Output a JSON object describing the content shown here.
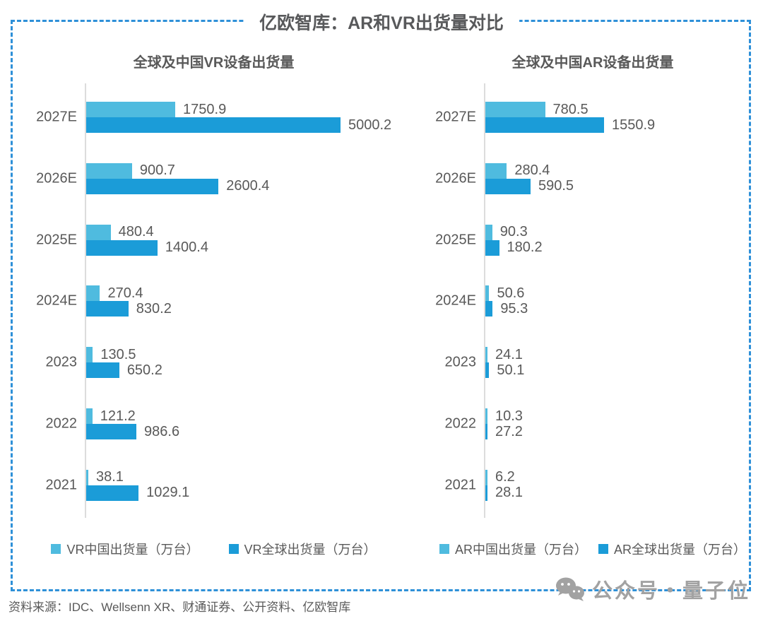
{
  "page": {
    "title": "亿欧智库：AR和VR出货量对比",
    "source_note": "资料来源：IDC、Wellsenn XR、财通证券、公开资料、亿欧智库",
    "watermark_text": "公众号・量子位"
  },
  "colors": {
    "china_bar": "#4fbbdf",
    "global_bar": "#1b9cd8",
    "dashed_border": "#2e90d8",
    "text": "#595959",
    "axis": "#dcdcdc",
    "watermark": "#a2a2a2"
  },
  "chart_data": [
    {
      "type": "bar",
      "orientation": "horizontal",
      "title": "全球及中国VR设备出货量",
      "unit": "万台",
      "categories": [
        "2027E",
        "2026E",
        "2025E",
        "2024E",
        "2023",
        "2022",
        "2021"
      ],
      "series": [
        {
          "name": "VR中国出货量（万台）",
          "color": "#4fbbdf",
          "values": [
            1750.9,
            900.7,
            480.4,
            270.4,
            130.5,
            121.2,
            38.1
          ]
        },
        {
          "name": "VR全球出货量（万台）",
          "color": "#1b9cd8",
          "values": [
            5000.2,
            2600.4,
            1400.4,
            830.2,
            650.2,
            986.6,
            1029.1
          ]
        }
      ],
      "xlim": [
        0,
        5000.2
      ],
      "grid": false,
      "legend_position": "bottom",
      "data_labels": true
    },
    {
      "type": "bar",
      "orientation": "horizontal",
      "title": "全球及中国AR设备出货量",
      "unit": "万台",
      "categories": [
        "2027E",
        "2026E",
        "2025E",
        "2024E",
        "2023",
        "2022",
        "2021"
      ],
      "series": [
        {
          "name": "AR中国出货量（万台）",
          "color": "#4fbbdf",
          "values": [
            780.5,
            280.4,
            90.3,
            50.6,
            24.1,
            10.3,
            6.2
          ]
        },
        {
          "name": "AR全球出货量（万台）",
          "color": "#1b9cd8",
          "values": [
            1550.9,
            590.5,
            180.2,
            95.3,
            50.1,
            27.2,
            28.1
          ]
        }
      ],
      "xlim": [
        0,
        1550.9
      ],
      "grid": false,
      "legend_position": "bottom",
      "data_labels": true
    }
  ]
}
